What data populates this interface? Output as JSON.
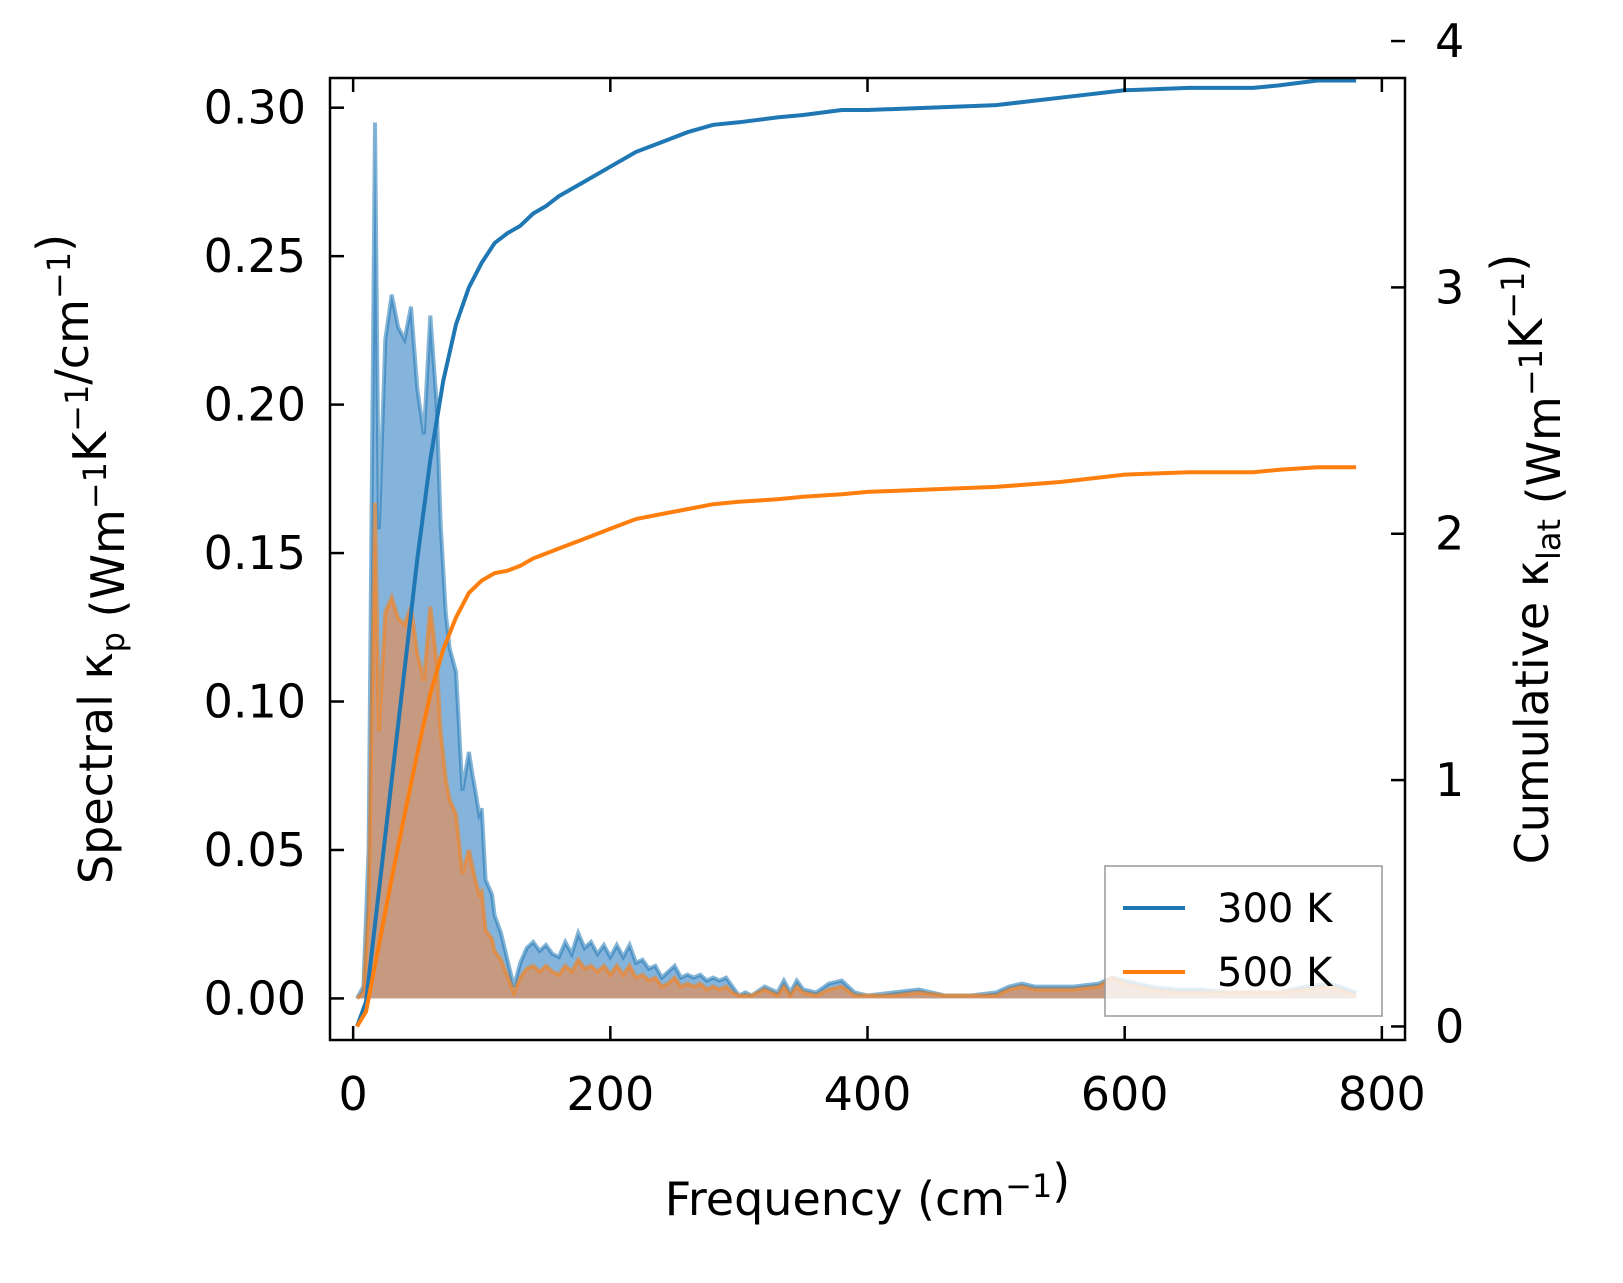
{
  "chart_data": {
    "type": "line",
    "title": "",
    "xlabel": "Frequency (cm⁻¹)",
    "ylabel_left": "Spectral κp (Wm⁻¹K⁻¹/cm⁻¹)",
    "ylabel_right": "Cumulative κlat (Wm⁻¹K⁻¹)",
    "xlim": [
      -18,
      818
    ],
    "ylim_left": [
      -0.014,
      0.31
    ],
    "ylim_right": [
      -0.055,
      3.85
    ],
    "xticks": [
      "0",
      "200",
      "400",
      "600",
      "800"
    ],
    "yticks_left": [
      "0.00",
      "0.05",
      "0.10",
      "0.15",
      "0.20",
      "0.25",
      "0.30"
    ],
    "yticks_right": [
      "0",
      "1",
      "2",
      "3",
      "4"
    ],
    "legend_position": "lower-right",
    "colors": {
      "s300": "#1f77b4",
      "s500": "#ff7f0e",
      "fill300": "#5b9bd0",
      "fill500": "#d6946a"
    },
    "spectral": [
      {
        "name": "300 K",
        "x": [
          3,
          8,
          12,
          17,
          20,
          25,
          30,
          35,
          40,
          45,
          50,
          55,
          60,
          65,
          68,
          72,
          75,
          80,
          85,
          90,
          93,
          95,
          98,
          100,
          103,
          108,
          110,
          115,
          125,
          130,
          135,
          140,
          145,
          150,
          155,
          160,
          165,
          170,
          175,
          180,
          185,
          190,
          195,
          200,
          205,
          210,
          215,
          220,
          225,
          230,
          235,
          240,
          245,
          250,
          255,
          260,
          265,
          270,
          275,
          280,
          285,
          290,
          295,
          300,
          305,
          310,
          320,
          330,
          335,
          340,
          345,
          350,
          360,
          370,
          380,
          390,
          400,
          420,
          440,
          460,
          480,
          500,
          510,
          520,
          530,
          540,
          560,
          580,
          590,
          600,
          620,
          640,
          660,
          680,
          700,
          720,
          740,
          760,
          780
        ],
        "y": [
          0,
          0.004,
          0.05,
          0.295,
          0.158,
          0.222,
          0.237,
          0.226,
          0.222,
          0.233,
          0.205,
          0.19,
          0.23,
          0.2,
          0.16,
          0.13,
          0.118,
          0.11,
          0.07,
          0.083,
          0.075,
          0.07,
          0.062,
          0.064,
          0.04,
          0.035,
          0.028,
          0.022,
          0.004,
          0.012,
          0.017,
          0.019,
          0.016,
          0.018,
          0.015,
          0.014,
          0.019,
          0.015,
          0.022,
          0.017,
          0.019,
          0.015,
          0.018,
          0.014,
          0.018,
          0.014,
          0.018,
          0.012,
          0.013,
          0.01,
          0.011,
          0.007,
          0.009,
          0.011,
          0.007,
          0.008,
          0.007,
          0.008,
          0.006,
          0.007,
          0.006,
          0.007,
          0.004,
          0.001,
          0.002,
          0.001,
          0.004,
          0.002,
          0.006,
          0.002,
          0.006,
          0.003,
          0.002,
          0.005,
          0.006,
          0.002,
          0.001,
          0.002,
          0.003,
          0.001,
          0.001,
          0.002,
          0.004,
          0.005,
          0.004,
          0.004,
          0.004,
          0.005,
          0.007,
          0.006,
          0.004,
          0.003,
          0.003,
          0.002,
          0.002,
          0.002,
          0.004,
          0.005,
          0.002
        ]
      },
      {
        "name": "500 K",
        "x": [
          3,
          8,
          12,
          17,
          20,
          25,
          30,
          35,
          40,
          45,
          50,
          55,
          60,
          65,
          68,
          72,
          75,
          80,
          85,
          90,
          93,
          95,
          98,
          100,
          103,
          108,
          110,
          115,
          125,
          130,
          135,
          140,
          145,
          150,
          155,
          160,
          165,
          170,
          175,
          180,
          185,
          190,
          195,
          200,
          205,
          210,
          215,
          220,
          225,
          230,
          235,
          240,
          245,
          250,
          255,
          260,
          265,
          270,
          275,
          280,
          285,
          290,
          295,
          300,
          305,
          310,
          320,
          330,
          335,
          340,
          345,
          350,
          360,
          370,
          380,
          390,
          400,
          420,
          440,
          460,
          480,
          500,
          510,
          520,
          530,
          540,
          560,
          580,
          590,
          600,
          620,
          640,
          660,
          680,
          700,
          720,
          740,
          760,
          780
        ],
        "y": [
          0,
          0.002,
          0.03,
          0.167,
          0.09,
          0.13,
          0.135,
          0.128,
          0.126,
          0.132,
          0.116,
          0.107,
          0.132,
          0.113,
          0.09,
          0.074,
          0.067,
          0.062,
          0.042,
          0.05,
          0.044,
          0.04,
          0.035,
          0.036,
          0.023,
          0.02,
          0.016,
          0.013,
          0.002,
          0.007,
          0.01,
          0.011,
          0.009,
          0.011,
          0.009,
          0.008,
          0.011,
          0.009,
          0.013,
          0.01,
          0.011,
          0.009,
          0.011,
          0.008,
          0.011,
          0.008,
          0.011,
          0.007,
          0.008,
          0.006,
          0.007,
          0.004,
          0.005,
          0.007,
          0.004,
          0.005,
          0.004,
          0.005,
          0.003,
          0.004,
          0.003,
          0.004,
          0.002,
          0.001,
          0.001,
          0.001,
          0.003,
          0.001,
          0.004,
          0.001,
          0.004,
          0.002,
          0.001,
          0.003,
          0.004,
          0.001,
          0.001,
          0.001,
          0.002,
          0.001,
          0.001,
          0.001,
          0.003,
          0.004,
          0.003,
          0.003,
          0.003,
          0.004,
          0.007,
          0.005,
          0.003,
          0.002,
          0.002,
          0.002,
          0.002,
          0.002,
          0.003,
          0.004,
          0.001
        ]
      }
    ],
    "cumulative": [
      {
        "name": "300 K",
        "x": [
          3,
          10,
          20,
          30,
          40,
          50,
          60,
          70,
          80,
          90,
          100,
          110,
          120,
          130,
          140,
          150,
          160,
          180,
          200,
          220,
          240,
          260,
          280,
          300,
          330,
          350,
          380,
          400,
          450,
          500,
          550,
          600,
          650,
          700,
          720,
          750,
          780
        ],
        "y": [
          0,
          0.1,
          0.55,
          1.0,
          1.45,
          1.9,
          2.3,
          2.62,
          2.85,
          3.0,
          3.1,
          3.18,
          3.22,
          3.25,
          3.3,
          3.33,
          3.37,
          3.43,
          3.49,
          3.55,
          3.59,
          3.63,
          3.66,
          3.67,
          3.69,
          3.7,
          3.72,
          3.72,
          3.73,
          3.74,
          3.77,
          3.8,
          3.81,
          3.81,
          3.82,
          3.84,
          3.84
        ]
      },
      {
        "name": "500 K",
        "x": [
          3,
          10,
          20,
          30,
          40,
          50,
          60,
          70,
          80,
          90,
          100,
          110,
          120,
          130,
          140,
          150,
          160,
          180,
          200,
          220,
          240,
          260,
          280,
          300,
          330,
          350,
          380,
          400,
          450,
          500,
          550,
          600,
          650,
          700,
          720,
          750,
          780
        ],
        "y": [
          0,
          0.06,
          0.33,
          0.6,
          0.86,
          1.11,
          1.35,
          1.53,
          1.66,
          1.76,
          1.81,
          1.84,
          1.85,
          1.87,
          1.9,
          1.92,
          1.94,
          1.98,
          2.02,
          2.06,
          2.08,
          2.1,
          2.12,
          2.13,
          2.14,
          2.15,
          2.16,
          2.17,
          2.18,
          2.19,
          2.21,
          2.24,
          2.25,
          2.25,
          2.26,
          2.27,
          2.27
        ]
      }
    ]
  }
}
